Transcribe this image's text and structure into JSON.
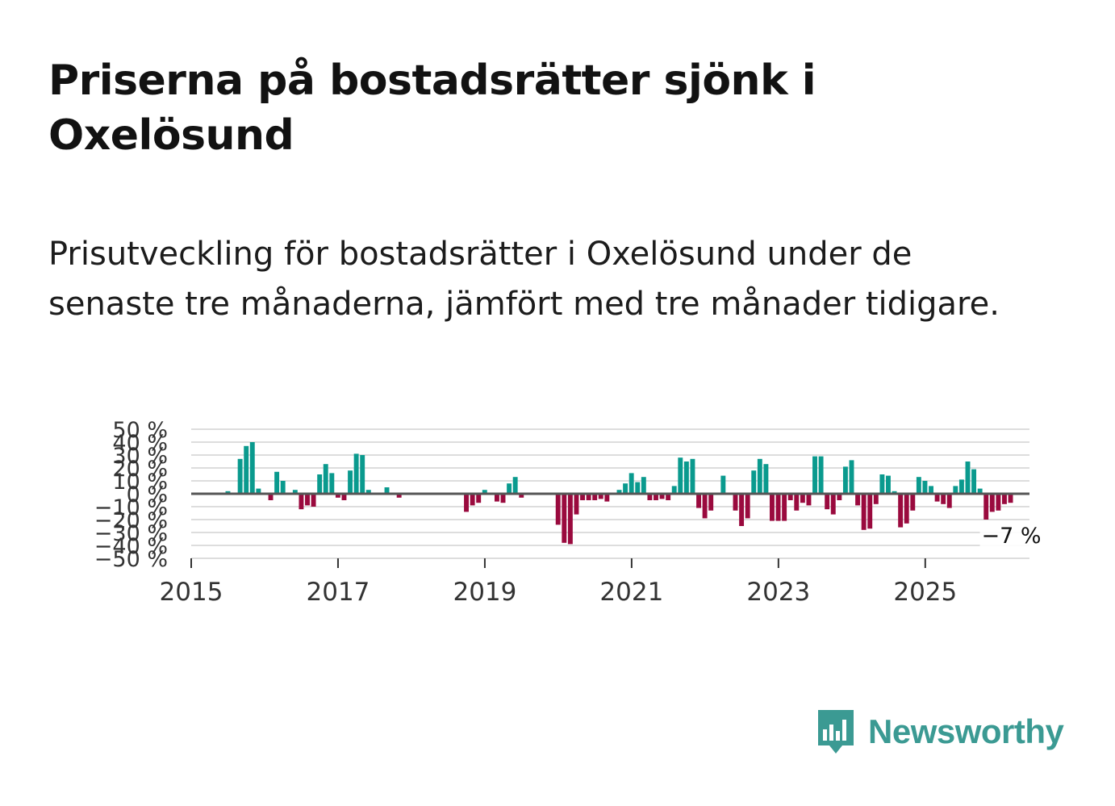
{
  "title": "Priserna på bostadsrätter sjönk i Oxelösund",
  "subtitle": "Prisutveckling för bostadsrätter i Oxelösund under de senaste tre månaderna, jämfört med tre månader tidigare.",
  "brand": {
    "name": "Newsworthy",
    "color": "#3b9a93"
  },
  "colors": {
    "positive": "#0a9a8e",
    "negative": "#9a0a3e",
    "zero_line": "#555555",
    "grid": "#dddddd"
  },
  "chart_data": {
    "type": "bar",
    "title": "",
    "xlabel": "",
    "ylabel": "",
    "ylim": [
      -50,
      50
    ],
    "y_ticks": [
      {
        "value": 50,
        "label": "50 %"
      },
      {
        "value": 40,
        "label": "40 %"
      },
      {
        "value": 30,
        "label": "30 %"
      },
      {
        "value": 20,
        "label": "20 %"
      },
      {
        "value": 10,
        "label": "10 %"
      },
      {
        "value": 0,
        "label": "0 %"
      },
      {
        "value": -10,
        "label": "−10 %"
      },
      {
        "value": -20,
        "label": "−20 %"
      },
      {
        "value": -30,
        "label": "−30 %"
      },
      {
        "value": -40,
        "label": "−40 %"
      },
      {
        "value": -50,
        "label": "−50 %"
      }
    ],
    "x_range": [
      2015.0,
      2026.42
    ],
    "x_ticks": [
      {
        "value": 2015,
        "label": "2015"
      },
      {
        "value": 2017,
        "label": "2017"
      },
      {
        "value": 2019,
        "label": "2019"
      },
      {
        "value": 2021,
        "label": "2021"
      },
      {
        "value": 2023,
        "label": "2023"
      },
      {
        "value": 2025,
        "label": "2025"
      }
    ],
    "start": 2015.0,
    "step": 0.0833,
    "values": [
      0,
      0,
      0,
      0,
      0,
      0,
      2,
      0,
      27,
      37,
      40,
      4,
      0,
      -5,
      17,
      10,
      0,
      3,
      -12,
      -9,
      -10,
      15,
      23,
      16,
      -3,
      -5,
      18,
      31,
      30,
      3,
      0,
      0,
      5,
      0,
      -3,
      0,
      0,
      0,
      0,
      0,
      0,
      0,
      0,
      0,
      0,
      -14,
      -9,
      -7,
      3,
      0,
      -6,
      -7,
      8,
      13,
      -3,
      0,
      0,
      0,
      0,
      0,
      -24,
      -38,
      -39,
      -16,
      -5,
      -5,
      -5,
      -4,
      -6,
      0,
      3,
      8,
      16,
      9,
      13,
      -5,
      -5,
      -4,
      -5,
      6,
      28,
      25,
      27,
      -11,
      -19,
      -13,
      0,
      14,
      0,
      -13,
      -25,
      -19,
      18,
      27,
      23,
      -21,
      -21,
      -21,
      -5,
      -13,
      -7,
      -9,
      29,
      29,
      -12,
      -16,
      -5,
      21,
      26,
      -9,
      -28,
      -27,
      -8,
      15,
      14,
      2,
      -26,
      -23,
      -13,
      13,
      10,
      6,
      -6,
      -8,
      -11,
      6,
      11,
      25,
      19,
      4,
      -20,
      -14,
      -13,
      -8,
      -7
    ],
    "annotation": {
      "text": "−7 %",
      "value": -7
    }
  }
}
